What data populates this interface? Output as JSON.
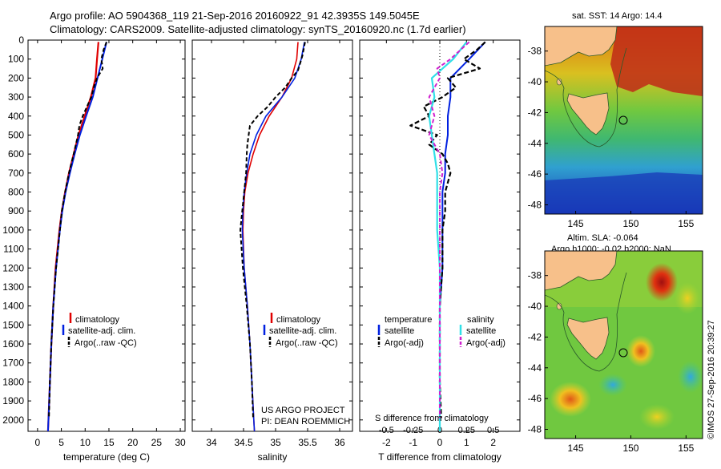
{
  "header": {
    "title_line1": "Argo profile: AO 5904368_119 21-Sep-2016 20160922_91 42.3935S 149.5045E",
    "title_line2": "Climatology: CARS2009. Satellite-adjusted climatology: synTS_20160920.nc (1.7d earlier)"
  },
  "colors": {
    "climatology": "#e00000",
    "satellite_t": "#0020e0",
    "satellite_s": "#30e0e8",
    "argo": "#000000",
    "argo_s": "#d020d0",
    "land": "#f7c08a"
  },
  "depth_axis": {
    "ticks": [
      "0",
      "100",
      "200",
      "300",
      "400",
      "500",
      "600",
      "700",
      "800",
      "900",
      "1000",
      "1100",
      "1200",
      "1300",
      "1400",
      "1500",
      "1600",
      "1700",
      "1800",
      "1900",
      "2000"
    ],
    "values": [
      0,
      100,
      200,
      300,
      400,
      500,
      600,
      700,
      800,
      900,
      1000,
      1100,
      1200,
      1300,
      1400,
      1500,
      1600,
      1700,
      1800,
      1900,
      2000
    ],
    "ylim": [
      0,
      2060
    ]
  },
  "chart_data": [
    {
      "type": "line",
      "id": "temperature",
      "xlabel": "temperature (deg C)",
      "xlim": [
        -2,
        31
      ],
      "xticks": [
        0,
        5,
        10,
        15,
        20,
        25,
        30
      ],
      "xtick_labels": [
        "0",
        "5",
        "10",
        "15",
        "20",
        "25",
        "30"
      ],
      "legend": [
        "climatology",
        "satellite-adj. clim.",
        "Argo(..raw -QC)"
      ],
      "series": [
        {
          "name": "climatology",
          "depth": [
            10,
            100,
            200,
            300,
            400,
            500,
            600,
            700,
            800,
            900,
            1000,
            1200,
            1400,
            1600,
            1800,
            2000,
            2060
          ],
          "values": [
            12.8,
            12.5,
            12.2,
            11.2,
            9.9,
            8.6,
            7.6,
            6.6,
            5.8,
            5.1,
            4.6,
            3.8,
            3.3,
            2.9,
            2.6,
            2.3,
            2.2
          ]
        },
        {
          "name": "satellite-adj. clim.",
          "depth": [
            10,
            100,
            200,
            300,
            400,
            500,
            600,
            700,
            800,
            900,
            1000,
            1200,
            1400,
            1600,
            1800,
            2000,
            2060
          ],
          "values": [
            14.5,
            13.6,
            12.6,
            11.6,
            10.2,
            8.9,
            7.8,
            6.8,
            5.9,
            5.2,
            4.7,
            3.9,
            3.3,
            2.9,
            2.6,
            2.3,
            2.2
          ]
        },
        {
          "name": "Argo(..raw -QC)",
          "depth": [
            10,
            50,
            100,
            150,
            200,
            250,
            300,
            350,
            400,
            450,
            500,
            600,
            700,
            800,
            900,
            1000,
            1200,
            1400,
            1600,
            1800,
            1990
          ],
          "values": [
            14.5,
            13.9,
            13.4,
            13.7,
            12.5,
            11.8,
            11.3,
            10.4,
            9.5,
            8.8,
            8.5,
            7.6,
            6.6,
            5.8,
            5.1,
            4.7,
            3.9,
            3.3,
            2.9,
            2.6,
            2.4
          ]
        }
      ]
    },
    {
      "type": "line",
      "id": "salinity",
      "xlabel": "salinity",
      "xlim": [
        33.7,
        36.2
      ],
      "xticks": [
        34,
        34.5,
        35,
        35.5,
        36
      ],
      "xtick_labels": [
        "34",
        "34.5",
        "35",
        "35.5",
        "36"
      ],
      "legend": [
        "climatology",
        "satellite-adj. clim.",
        "Argo(..raw -QC)"
      ],
      "annotation": [
        "US ARGO PROJECT",
        "PI: DEAN ROEMMICH"
      ],
      "series": [
        {
          "name": "climatology",
          "depth": [
            10,
            100,
            200,
            300,
            400,
            500,
            600,
            700,
            800,
            900,
            1000,
            1200,
            1400,
            1600,
            1800,
            2000,
            2060
          ],
          "values": [
            35.35,
            35.33,
            35.25,
            35.1,
            34.9,
            34.75,
            34.65,
            34.57,
            34.52,
            34.5,
            34.49,
            34.51,
            34.56,
            34.6,
            34.63,
            34.66,
            34.67
          ]
        },
        {
          "name": "satellite-adj. clim.",
          "depth": [
            10,
            100,
            200,
            300,
            400,
            500,
            600,
            700,
            800,
            900,
            1000,
            1200,
            1400,
            1600,
            1800,
            2000,
            2060
          ],
          "values": [
            35.45,
            35.4,
            35.3,
            35.1,
            34.85,
            34.7,
            34.6,
            34.55,
            34.51,
            34.49,
            34.48,
            34.51,
            34.56,
            34.6,
            34.63,
            34.66,
            34.67
          ]
        },
        {
          "name": "Argo(..raw -QC)",
          "depth": [
            10,
            80,
            160,
            200,
            250,
            300,
            350,
            400,
            450,
            500,
            550,
            600,
            700,
            800,
            900,
            1000,
            1200,
            1400,
            1600,
            1800,
            1990
          ],
          "values": [
            35.46,
            35.42,
            35.35,
            35.25,
            35.15,
            35.0,
            34.88,
            34.72,
            34.6,
            34.58,
            34.56,
            34.55,
            34.54,
            34.51,
            34.48,
            34.45,
            34.49,
            34.55,
            34.6,
            34.63,
            34.65
          ]
        }
      ]
    },
    {
      "type": "line",
      "id": "difference",
      "xlabel": "T difference from climatology",
      "xlim": [
        -3,
        3
      ],
      "xticks": [
        -2,
        -1,
        0,
        1,
        2
      ],
      "xtick_labels": [
        "-2",
        "-1",
        "0",
        "1",
        "2"
      ],
      "s_xlabel": "S difference from climatology",
      "s_xtick_labels": [
        "-0.5",
        "-0.25",
        "0",
        "0.25",
        "0.5"
      ],
      "s_xtick_positions": [
        -2,
        -1,
        0,
        1,
        2
      ],
      "legend_headers": [
        "temperature",
        "salinity"
      ],
      "legend": [
        "satellite",
        "Argo(-adj)",
        "satellite",
        "Argo(-adj)"
      ],
      "series": [
        {
          "name": "T satellite",
          "depth": [
            10,
            100,
            200,
            300,
            400,
            500,
            600,
            700,
            800,
            900,
            1000,
            1200,
            1400,
            1600,
            1800,
            2000,
            2060
          ],
          "values": [
            1.7,
            1.1,
            0.4,
            0.4,
            0.3,
            0.3,
            0.2,
            0.2,
            0.1,
            0.1,
            0.1,
            0.1,
            0.0,
            0.0,
            0.0,
            0.0,
            0.0
          ]
        },
        {
          "name": "T Argo(-adj)",
          "depth": [
            10,
            50,
            100,
            150,
            200,
            250,
            300,
            350,
            400,
            450,
            500,
            550,
            600,
            650,
            700,
            800,
            900,
            1000,
            1200,
            1400,
            1600,
            1800,
            1990
          ],
          "values": [
            1.7,
            1.4,
            0.9,
            1.5,
            0.3,
            0.6,
            0.1,
            -0.6,
            -0.4,
            -1.1,
            -0.1,
            -0.4,
            0.1,
            0.3,
            0.4,
            0.2,
            0.2,
            0.1,
            0.1,
            0.0,
            0.0,
            0.0,
            0.05
          ]
        },
        {
          "name": "S satellite",
          "depth": [
            10,
            100,
            200,
            300,
            400,
            500,
            600,
            700,
            800,
            900,
            1000,
            1200,
            1400,
            1600,
            1800,
            2000,
            2060
          ],
          "values": [
            1.0,
            0.5,
            -0.3,
            -0.2,
            -0.4,
            -0.3,
            -0.2,
            -0.1,
            -0.1,
            -0.1,
            -0.1,
            0.0,
            0.0,
            0.0,
            0.0,
            0.0,
            0.0
          ]
        },
        {
          "name": "S Argo(-adj)",
          "depth": [
            10,
            100,
            150,
            200,
            300,
            400,
            500,
            600,
            700,
            800,
            900,
            1000,
            1200,
            1400,
            1600,
            1800,
            1990
          ],
          "values": [
            1.1,
            0.4,
            -0.1,
            0.0,
            -0.4,
            -0.2,
            -0.4,
            0.0,
            0.1,
            0.0,
            0.0,
            0.0,
            0.0,
            0.0,
            0.0,
            0.0,
            0.0
          ]
        }
      ]
    },
    {
      "type": "heatmap",
      "id": "sst_map",
      "title": "sat. SST: 14  Argo: 14.4",
      "yticks": [
        -38,
        -40,
        -42,
        -44,
        -46,
        -48
      ],
      "ytick_labels": [
        "-38",
        "-40",
        "-42",
        "-44",
        "-46",
        "-48"
      ],
      "xticks": [
        145,
        150,
        155
      ],
      "xtick_labels": [
        "145",
        "150",
        "155"
      ],
      "xlim": [
        142.2,
        156.5
      ],
      "ylim": [
        -48.6,
        -36.4
      ],
      "float_position": [
        149.5045,
        -42.3935
      ]
    },
    {
      "type": "heatmap",
      "id": "sla_map",
      "title_line1": "Altim. SLA: -0.064",
      "title_line2": "Argo h1000: -0.02 h2000: NaN",
      "yticks": [
        -38,
        -40,
        -42,
        -44,
        -46,
        -48
      ],
      "ytick_labels": [
        "-38",
        "-40",
        "-42",
        "-44",
        "-46",
        "-48"
      ],
      "xticks": [
        145,
        150,
        155
      ],
      "xtick_labels": [
        "145",
        "150",
        "155"
      ],
      "xlim": [
        142.2,
        156.5
      ],
      "ylim": [
        -48.6,
        -36.4
      ],
      "float_position": [
        149.5045,
        -42.3935
      ]
    }
  ],
  "footer": {
    "credit": "©IMOS 27-Sep-2016 20:39:27"
  }
}
